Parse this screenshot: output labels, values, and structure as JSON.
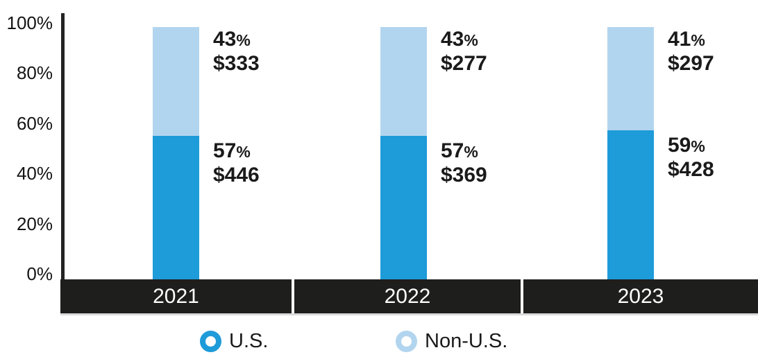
{
  "chart_data": {
    "type": "bar",
    "stacked": true,
    "title": "",
    "categories": [
      "2021",
      "2022",
      "2023"
    ],
    "series": [
      {
        "name": "U.S.",
        "color": "#1E9BD9",
        "pct": [
          57,
          57,
          59
        ],
        "pct_labels": [
          "57%",
          "57%",
          "59%"
        ],
        "amounts": [
          "$446",
          "$369",
          "$428"
        ]
      },
      {
        "name": "Non-U.S.",
        "color": "#B2D5EF",
        "pct": [
          43,
          43,
          41
        ],
        "pct_labels": [
          "43%",
          "43%",
          "41%"
        ],
        "amounts": [
          "$333",
          "$277",
          "$297"
        ]
      }
    ],
    "y_axis": {
      "ticks": [
        "0%",
        "20%",
        "40%",
        "60%",
        "80%",
        "100%"
      ],
      "min": 0,
      "max": 100,
      "grid": false
    },
    "x_axis": {
      "band_color": "#1E1E1C",
      "label_color": "#FFFFFF"
    },
    "legend": {
      "position": "bottom",
      "items": [
        {
          "label": "U.S.",
          "color": "#1E9BD9"
        },
        {
          "label": "Non-U.S.",
          "color": "#B2D5EF"
        }
      ]
    }
  },
  "colors": {
    "us_bar": "#1E9BD9",
    "non_us_bar": "#B2D5EF",
    "axis_line": "#242424",
    "band_background": "#1E1E1C",
    "band_underline": "#D9D9D9",
    "text": "#1A1A1A"
  }
}
